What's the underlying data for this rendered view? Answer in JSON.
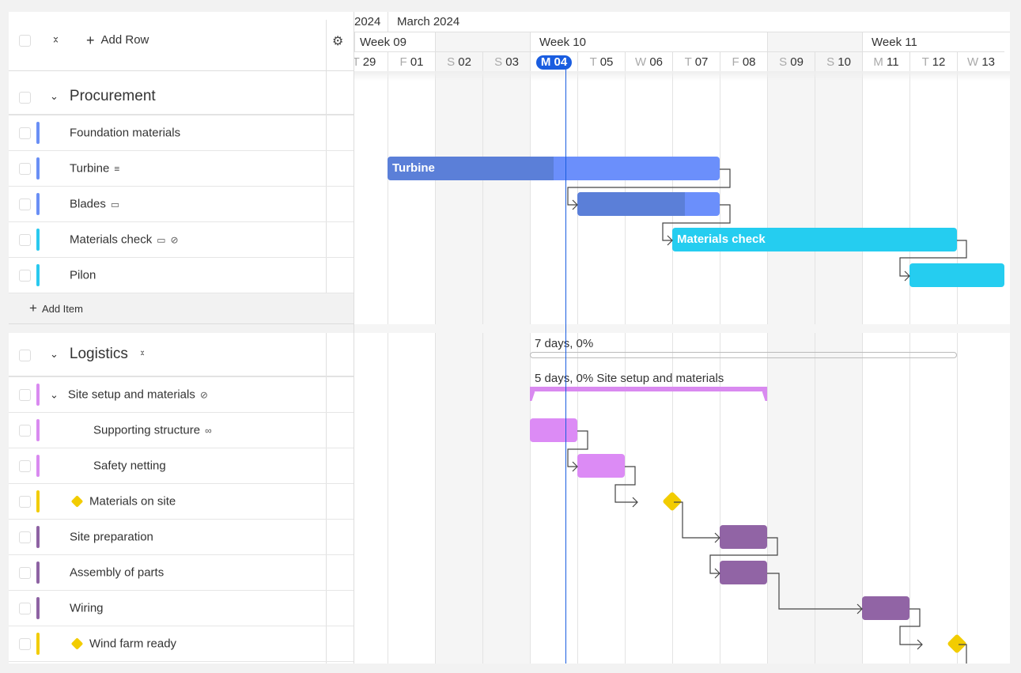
{
  "toolbar": {
    "add_row": "Add Row"
  },
  "timeline": {
    "months": [
      {
        "label": "2024"
      },
      {
        "label": "March 2024"
      }
    ],
    "weeks": [
      {
        "label": "Week 09"
      },
      {
        "label": "Week 10"
      },
      {
        "label": "Week 11"
      }
    ],
    "days": [
      {
        "l": "T",
        "n": "29",
        "weekend": false
      },
      {
        "l": "F",
        "n": "01",
        "weekend": false
      },
      {
        "l": "S",
        "n": "02",
        "weekend": true
      },
      {
        "l": "S",
        "n": "03",
        "weekend": true
      },
      {
        "l": "M",
        "n": "04",
        "weekend": false,
        "today": true
      },
      {
        "l": "T",
        "n": "05",
        "weekend": false
      },
      {
        "l": "W",
        "n": "06",
        "weekend": false
      },
      {
        "l": "T",
        "n": "07",
        "weekend": false
      },
      {
        "l": "F",
        "n": "08",
        "weekend": false
      },
      {
        "l": "S",
        "n": "09",
        "weekend": true
      },
      {
        "l": "S",
        "n": "10",
        "weekend": true
      },
      {
        "l": "M",
        "n": "11",
        "weekend": false
      },
      {
        "l": "T",
        "n": "12",
        "weekend": false
      },
      {
        "l": "W",
        "n": "13",
        "weekend": false
      }
    ],
    "today_color": "#1a5de0"
  },
  "groups": [
    {
      "name": "Procurement",
      "summary": "7 days, 0%",
      "add_item": "Add Item",
      "tasks": [
        {
          "name": "Foundation materials",
          "color": "#6a8ff5",
          "icons": []
        },
        {
          "name": "Turbine",
          "color": "#6a8ff5",
          "icons": [
            "notes-icon"
          ],
          "start": 1,
          "end": 7,
          "progress": 50,
          "label": "Turbine",
          "bar": "#6b8ffb",
          "dark": "#5b7fd8"
        },
        {
          "name": "Blades",
          "color": "#6a8ff5",
          "icons": [
            "comment-icon"
          ],
          "start": 5,
          "end": 7,
          "progress": 75,
          "label": "",
          "bar": "#6b8ffb",
          "dark": "#5b7fd8"
        },
        {
          "name": "Materials check",
          "color": "#29c9ef",
          "icons": [
            "comment-icon",
            "attachment-icon"
          ],
          "start": 7,
          "end": 12,
          "label": "Materials check",
          "bar": "#25cdf0"
        },
        {
          "name": "Pilon",
          "color": "#29c9ef",
          "icons": [],
          "start": 12,
          "end": 13,
          "label": "",
          "bar": "#25cdf0"
        }
      ]
    },
    {
      "name": "Logistics",
      "tasks": [
        {
          "name": "Site setup and materials",
          "color": "#d98af0",
          "icons": [
            "attachment-icon"
          ],
          "summary": "5 days, 0% Site setup and materials",
          "start": 4,
          "end": 8,
          "parent": true
        },
        {
          "name": "Supporting structure",
          "color": "#d98af0",
          "icons": [
            "link-icon"
          ],
          "start": 4,
          "end": 4,
          "bar": "#dc8bf5",
          "indent": true
        },
        {
          "name": "Safety netting",
          "color": "#d98af0",
          "icons": [],
          "start": 5,
          "end": 5,
          "bar": "#dc8bf5",
          "indent": true
        },
        {
          "name": "Materials on site",
          "color": "#f2cc00",
          "milestone": true,
          "date": 6
        },
        {
          "name": "Site preparation",
          "color": "#8e63a3",
          "icons": [],
          "start": 8,
          "end": 8,
          "bar": "#9164a5"
        },
        {
          "name": "Assembly of parts",
          "color": "#8e63a3",
          "icons": [],
          "start": 8,
          "end": 8,
          "bar": "#9164a5"
        },
        {
          "name": "Wiring",
          "color": "#8e63a3",
          "icons": [],
          "start": 11,
          "end": 11,
          "bar": "#9164a5"
        },
        {
          "name": "Wind farm ready",
          "color": "#f2cc00",
          "milestone": true,
          "date": 12
        }
      ]
    }
  ]
}
